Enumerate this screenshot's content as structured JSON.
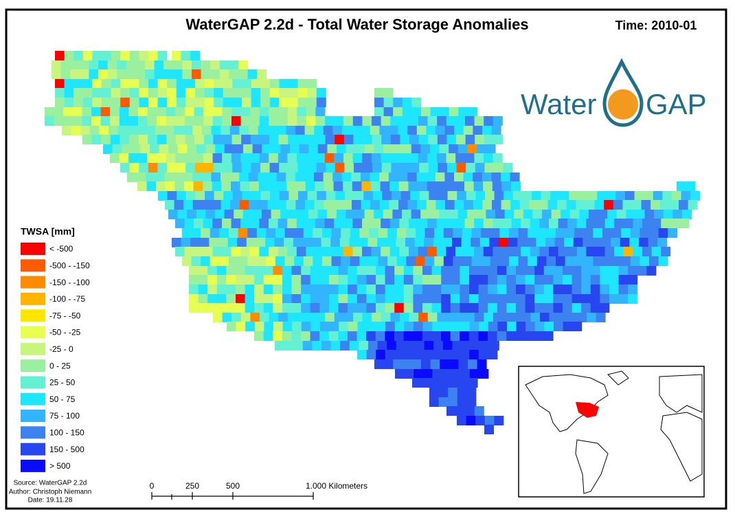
{
  "header": {
    "title": "WaterGAP 2.2d - Total Water Storage Anomalies",
    "time": "Time: 2010-01"
  },
  "logo": {
    "left": "Water",
    "right": "GAP"
  },
  "legend": {
    "title": "TWSA [mm]",
    "items": [
      {
        "label": "< -500",
        "color": "#ff0000"
      },
      {
        "label": "-500 - -150",
        "color": "#ff5a00"
      },
      {
        "label": "-150 - -100",
        "color": "#ff8c00"
      },
      {
        "label": "-100 - -75",
        "color": "#ffb400"
      },
      {
        "label": "-75 - -50",
        "color": "#ffe600"
      },
      {
        "label": "-50 - -25",
        "color": "#e6ff50"
      },
      {
        "label": "-25 - 0",
        "color": "#c8f57d"
      },
      {
        "label": "0 - 25",
        "color": "#9bf0a0"
      },
      {
        "label": "25 - 50",
        "color": "#64f0d2"
      },
      {
        "label": "50 - 75",
        "color": "#1ee6ff"
      },
      {
        "label": "75 - 100",
        "color": "#32b4ff"
      },
      {
        "label": "100 - 150",
        "color": "#3c82f0"
      },
      {
        "label": "150 - 500",
        "color": "#2846f0"
      },
      {
        "label": "> 500",
        "color": "#0a0aff"
      }
    ]
  },
  "credits": [
    "Source: WaterGAP 2.2d",
    "Author: Christoph Niemann",
    "Date: 19.11.28"
  ],
  "scale_bar": {
    "labels": [
      "0",
      "250",
      "500",
      "1.000 Kilometers"
    ]
  }
}
